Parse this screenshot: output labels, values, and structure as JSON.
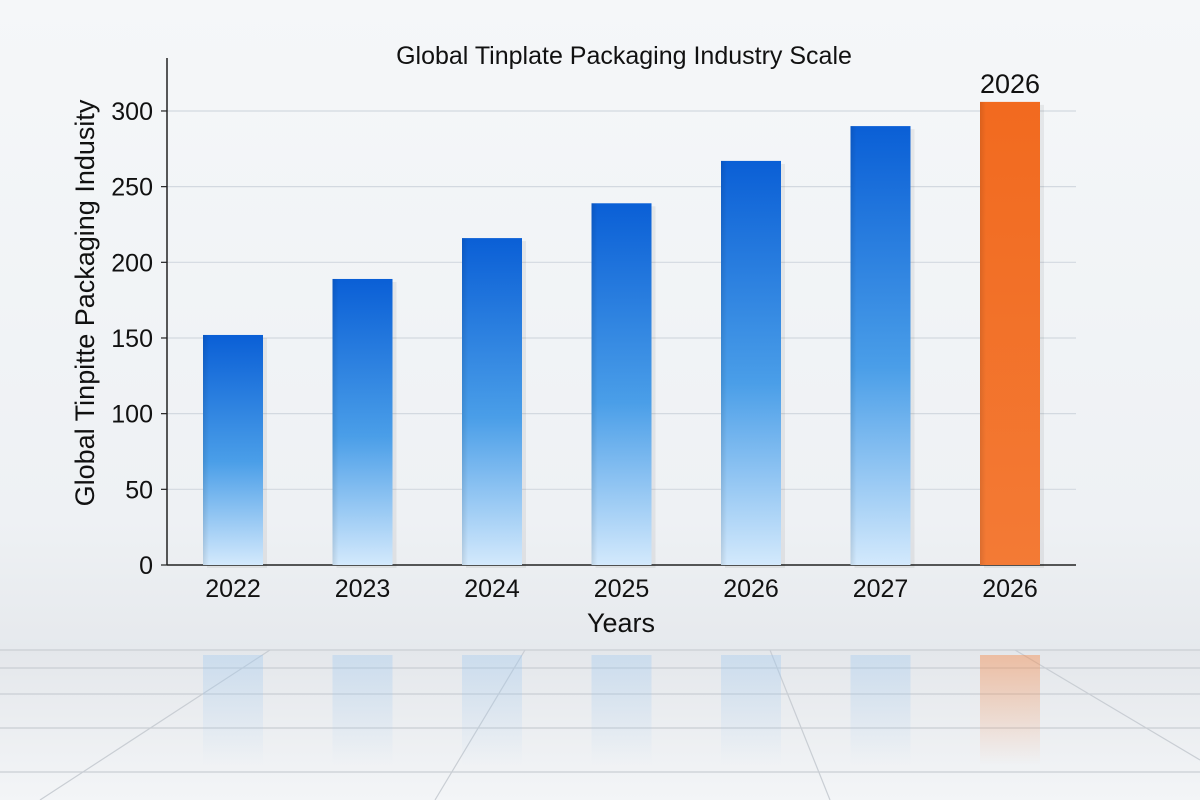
{
  "chart_data": {
    "type": "bar",
    "title": "Global Tinplate Packaging Industry Scale",
    "xlabel": "Years",
    "ylabel": "Global Tinpitte Packaging Indusity",
    "categories": [
      "2022",
      "2023",
      "2024",
      "2025",
      "2026",
      "2027",
      "2026"
    ],
    "values": [
      152,
      189,
      216,
      239,
      267,
      290,
      306
    ],
    "highlight_index": 6,
    "highlight_label": "2026",
    "ylim": [
      0,
      335
    ],
    "yticks": [
      0,
      50,
      100,
      150,
      200,
      250,
      300
    ],
    "grid": true,
    "colors": {
      "bar_top": "#0a5fd6",
      "bar_bottom": "#cfe6fb",
      "highlight": "#f26a1f",
      "grid": "#d3d9e0",
      "axis": "#222222",
      "text": "#111111"
    }
  }
}
